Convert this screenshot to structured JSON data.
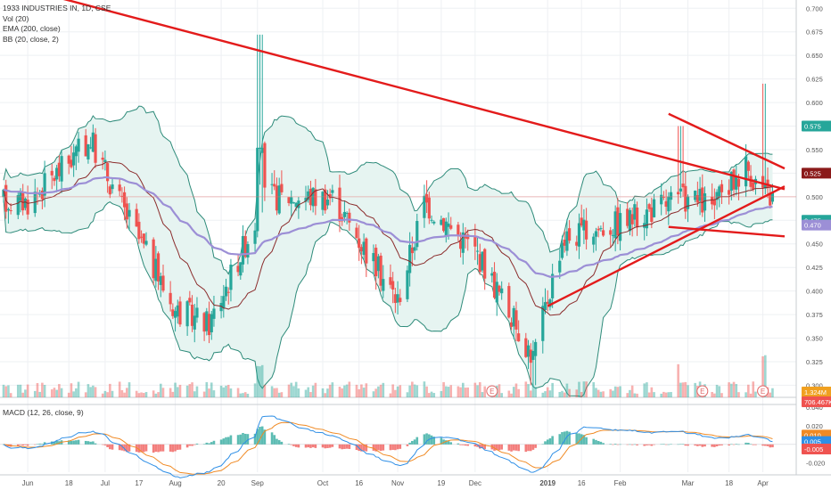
{
  "legend": {
    "symbol": "1933 INDUSTRIES IN, 1D, CSE",
    "vol": "Vol (20)",
    "ema": "EMA (200, close)",
    "bb": "BB (20, close, 2)",
    "macd": "MACD (12, 26, close, 9)"
  },
  "colors": {
    "up": "#26a69a",
    "down": "#ef5350",
    "trend": "#e31b1b",
    "bb_band": "#2e8b7a",
    "bb_fill": "#e6f4f1",
    "basis": "#8b2c2c",
    "ema": "#9c8fd6",
    "macd_line": "#2f8fe6",
    "signal_line": "#f08a24"
  },
  "chart_data": [
    {
      "type": "candlestick",
      "name": "price",
      "y_ticks": [
        "0.700",
        "0.675",
        "0.650",
        "0.625",
        "0.600",
        "0.575",
        "0.550",
        "0.525",
        "0.500",
        "0.475",
        "0.450",
        "0.425",
        "0.400",
        "0.375",
        "0.350",
        "0.325",
        "0.300"
      ],
      "ylim": [
        0.29,
        0.705
      ],
      "x_ticks": [
        "Jun",
        "18",
        "Jul",
        "17",
        "Aug",
        "20",
        "Sep",
        "Oct",
        "16",
        "Nov",
        "19",
        "Dec",
        "2019",
        "16",
        "Feb",
        "Mar",
        "18",
        "Apr"
      ],
      "price_labels": [
        {
          "text": "0.575",
          "value": 0.575,
          "color": "#26a69a"
        },
        {
          "text": "0.525",
          "value": 0.525,
          "color": "#8b1a1a"
        },
        {
          "text": "0.475",
          "value": 0.475,
          "color": "#26a69a"
        },
        {
          "text": "0.470",
          "value": 0.47,
          "color": "#9c8fd6"
        }
      ],
      "key_points": [
        {
          "date": "2018-06-01",
          "close": 0.495
        },
        {
          "date": "2018-06-27",
          "close": 0.56
        },
        {
          "date": "2018-07-10",
          "close": 0.49
        },
        {
          "date": "2018-08-01",
          "close": 0.38
        },
        {
          "date": "2018-08-15",
          "close": 0.365
        },
        {
          "date": "2018-09-04",
          "close": 0.48
        },
        {
          "date": "2018-09-05",
          "high": 0.672
        },
        {
          "date": "2018-10-05",
          "close": 0.5
        },
        {
          "date": "2018-11-01",
          "close": 0.39
        },
        {
          "date": "2018-11-12",
          "close": 0.495
        },
        {
          "date": "2018-12-04",
          "close": 0.44
        },
        {
          "date": "2018-12-27",
          "low": 0.3
        },
        {
          "date": "2019-01-08",
          "close": 0.455
        },
        {
          "date": "2019-02-04",
          "close": 0.475
        },
        {
          "date": "2019-02-26",
          "high": 0.575
        },
        {
          "date": "2019-03-12",
          "close": 0.49
        },
        {
          "date": "2019-03-25",
          "close": 0.535
        },
        {
          "date": "2019-04-01",
          "high": 0.62
        },
        {
          "date": "2019-04-05",
          "close": 0.5
        }
      ],
      "trendlines": [
        {
          "from": [
            "2018-05-20",
            0.728
          ],
          "to": [
            "2019-04-10",
            0.508
          ]
        },
        {
          "from": [
            "2019-01-02",
            0.384
          ],
          "to": [
            "2019-04-10",
            0.511
          ]
        },
        {
          "from": [
            "2019-02-21",
            0.468
          ],
          "to": [
            "2019-04-10",
            0.458
          ]
        },
        {
          "from": [
            "2019-02-21",
            0.588
          ],
          "to": [
            "2019-04-10",
            0.53
          ]
        }
      ],
      "horizontal_line": 0.5
    },
    {
      "type": "bar",
      "name": "volume",
      "labels": [
        {
          "text": "1.324M",
          "color": "#f0a020"
        },
        {
          "text": "706.467K",
          "color": "#ef5350"
        }
      ],
      "earnings_markers": [
        "E",
        "E",
        "E"
      ]
    },
    {
      "type": "line",
      "name": "macd",
      "y_ticks": [
        "0.040",
        "0.020",
        "0.000",
        "-0.020"
      ],
      "ylim": [
        -0.03,
        0.045
      ],
      "value_labels": [
        {
          "text": "0.010",
          "value": 0.01,
          "color": "#f08a24"
        },
        {
          "text": "0.005",
          "value": 0.005,
          "color": "#2f8fe6"
        },
        {
          "text": "-0.005",
          "value": -0.005,
          "color": "#ef5350"
        }
      ]
    }
  ]
}
